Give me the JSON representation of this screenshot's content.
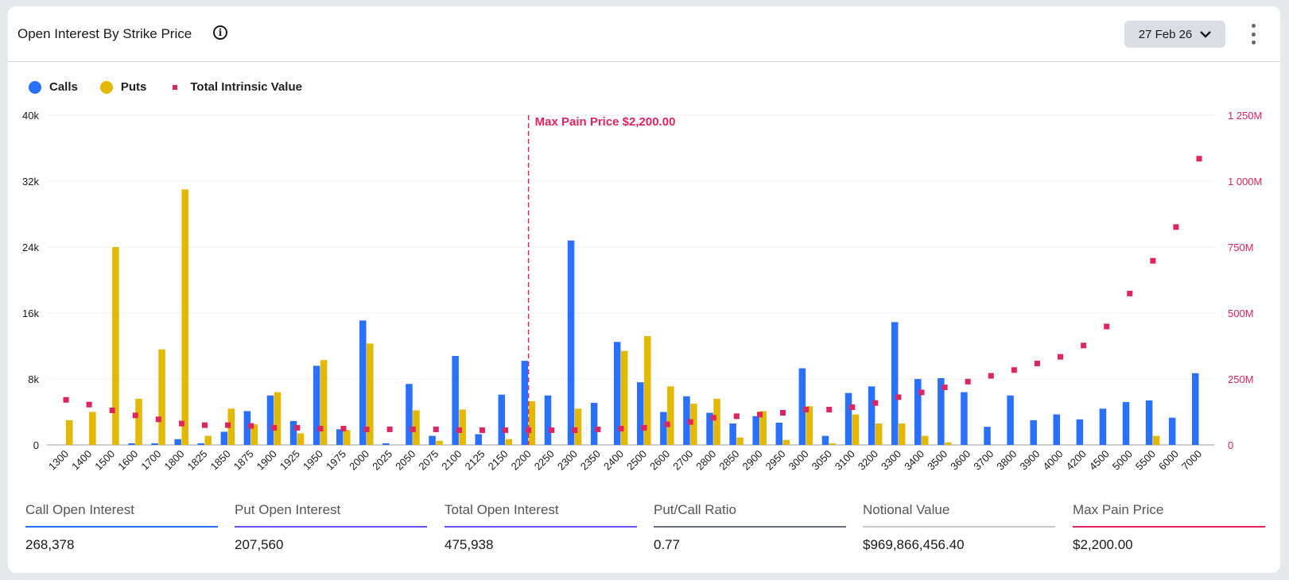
{
  "header": {
    "title": "Open Interest By Strike Price",
    "info_icon": "info-circle-icon",
    "date_selector": "27 Feb 26",
    "menu_icon": "kebab-menu-icon"
  },
  "legend": [
    {
      "label": "Calls",
      "color": "#2970ff",
      "shape": "circle"
    },
    {
      "label": "Puts",
      "color": "#e5b800",
      "shape": "circle"
    },
    {
      "label": "Total Intrinsic Value",
      "color": "#e0245e",
      "shape": "square"
    }
  ],
  "chart_data": {
    "type": "bar",
    "categories": [
      "1300",
      "1400",
      "1500",
      "1600",
      "1700",
      "1800",
      "1825",
      "1850",
      "1875",
      "1900",
      "1925",
      "1950",
      "1975",
      "2000",
      "2025",
      "2050",
      "2075",
      "2100",
      "2125",
      "2150",
      "2200",
      "2250",
      "2300",
      "2350",
      "2400",
      "2500",
      "2600",
      "2700",
      "2800",
      "2850",
      "2900",
      "2950",
      "3000",
      "3050",
      "3100",
      "3200",
      "3300",
      "3400",
      "3500",
      "3600",
      "3700",
      "3800",
      "3900",
      "4000",
      "4200",
      "4500",
      "5000",
      "5500",
      "6000",
      "7000"
    ],
    "series": [
      {
        "name": "Calls",
        "type": "bar",
        "axis": "left",
        "color": "#2970ff",
        "values": [
          0,
          0,
          0,
          200,
          200,
          700,
          200,
          1600,
          4100,
          6000,
          2900,
          9600,
          1900,
          15100,
          200,
          7400,
          1100,
          10800,
          1300,
          6100,
          10200,
          6000,
          24800,
          5100,
          12500,
          7600,
          4000,
          5900,
          3900,
          2600,
          3500,
          2700,
          9300,
          1100,
          6300,
          7100,
          14900,
          8000,
          8100,
          6400,
          2200,
          6000,
          3000,
          3700,
          3100,
          4400,
          5200,
          5400,
          3300,
          8700
        ]
      },
      {
        "name": "Puts",
        "type": "bar",
        "axis": "left",
        "color": "#e5b800",
        "values": [
          3000,
          4000,
          24000,
          5600,
          11600,
          31000,
          1100,
          4400,
          2500,
          6400,
          1400,
          10300,
          1800,
          12300,
          0,
          4200,
          500,
          4300,
          0,
          700,
          5300,
          0,
          4400,
          0,
          11400,
          13200,
          7100,
          5000,
          5600,
          900,
          4100,
          600,
          4700,
          200,
          3700,
          2600,
          2600,
          1100,
          300,
          0,
          0,
          0,
          0,
          0,
          0,
          0,
          0,
          1100,
          0,
          0
        ]
      },
      {
        "name": "Total Intrinsic Value",
        "type": "scatter",
        "axis": "right",
        "color": "#e0245e",
        "values": [
          171,
          153,
          131,
          112,
          97,
          81,
          75,
          75,
          72,
          65,
          65,
          62,
          62,
          59,
          59,
          59,
          59,
          56,
          56,
          56,
          56,
          56,
          56,
          59,
          62,
          65,
          78,
          87,
          103,
          109,
          115,
          122,
          134,
          134,
          143,
          159,
          181,
          199,
          218,
          240,
          262,
          284,
          309,
          334,
          377,
          449,
          574,
          698,
          826,
          1085
        ]
      }
    ],
    "y_left": {
      "ticks": [
        "40k",
        "32k",
        "24k",
        "16k",
        "8k",
        "0"
      ],
      "range": [
        0,
        40000
      ]
    },
    "y_right": {
      "ticks": [
        "1 250M",
        "1 000M",
        "750M",
        "500M",
        "250M",
        "0"
      ],
      "range": [
        0,
        1250
      ],
      "unit": "M",
      "color": "#e0245e"
    },
    "grid": true,
    "legend_position": "top-left",
    "annotation": {
      "label": "Max Pain Price $2,200.00",
      "category": "2200",
      "color": "#e0245e"
    }
  },
  "stats": [
    {
      "label": "Call Open Interest",
      "value": "268,378",
      "color": "#2970ff"
    },
    {
      "label": "Put Open Interest",
      "value": "207,560",
      "color": "#6b4ef0"
    },
    {
      "label": "Total Open Interest",
      "value": "475,938",
      "color": "#6b4ef0"
    },
    {
      "label": "Put/Call Ratio",
      "value": "0.77",
      "color": "#6b7280"
    },
    {
      "label": "Notional Value",
      "value": "$969,866,456.40",
      "color": "#c9c9ce"
    },
    {
      "label": "Max Pain Price",
      "value": "$2,200.00",
      "color": "#e0245e"
    }
  ]
}
